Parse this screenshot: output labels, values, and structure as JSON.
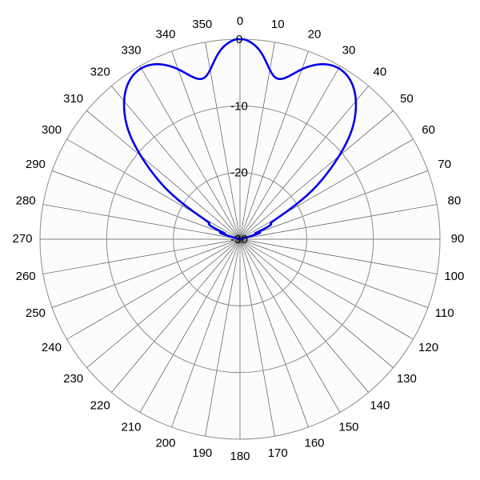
{
  "chart_data": {
    "type": "polar-line",
    "title": "",
    "theta_zero": "top",
    "theta_direction": "clockwise",
    "theta_tick_step": 10,
    "theta_ticks": [
      "0",
      "10",
      "20",
      "30",
      "40",
      "50",
      "60",
      "70",
      "80",
      "90",
      "100",
      "110",
      "120",
      "130",
      "140",
      "150",
      "160",
      "170",
      "180",
      "190",
      "200",
      "210",
      "220",
      "230",
      "240",
      "250",
      "260",
      "270",
      "280",
      "290",
      "300",
      "310",
      "320",
      "330",
      "340",
      "350"
    ],
    "r_range": [
      -30,
      0
    ],
    "r_ticks": [
      0,
      -10,
      -20,
      -30
    ],
    "r_tick_labels": [
      "0",
      "-10",
      "-20",
      "-30"
    ],
    "grid": true,
    "series": [
      {
        "color": "#0000ee",
        "lobes": [
          {
            "angle_deg": 0,
            "peak_db": 0,
            "half_width_deg": 9
          },
          {
            "angle_deg": 30,
            "peak_db": -0.4,
            "half_width_deg": 13
          },
          {
            "angle_deg": -30,
            "peak_db": -0.4,
            "half_width_deg": 13
          },
          {
            "angle_deg": 6,
            "peak_db": -16,
            "half_width_deg": 2.5
          },
          {
            "angle_deg": -6,
            "peak_db": -16,
            "half_width_deg": 2.5
          },
          {
            "angle_deg": 14,
            "peak_db": -20,
            "half_width_deg": 3
          },
          {
            "angle_deg": -14,
            "peak_db": -20,
            "half_width_deg": 3
          },
          {
            "angle_deg": 20,
            "peak_db": -24,
            "half_width_deg": 2.5
          },
          {
            "angle_deg": -20,
            "peak_db": -24,
            "half_width_deg": 2.5
          },
          {
            "angle_deg": 45,
            "peak_db": -21,
            "half_width_deg": 3
          },
          {
            "angle_deg": -45,
            "peak_db": -21,
            "half_width_deg": 3
          },
          {
            "angle_deg": 55,
            "peak_db": -24.5,
            "half_width_deg": 3.5
          },
          {
            "angle_deg": -55,
            "peak_db": -24.5,
            "half_width_deg": 3.5
          },
          {
            "angle_deg": 65,
            "peak_db": -26,
            "half_width_deg": 3.5
          },
          {
            "angle_deg": -65,
            "peak_db": -26,
            "half_width_deg": 3.5
          },
          {
            "angle_deg": 72,
            "peak_db": -27,
            "half_width_deg": 3.5
          },
          {
            "angle_deg": -72,
            "peak_db": -27,
            "half_width_deg": 3.5
          }
        ]
      }
    ]
  }
}
